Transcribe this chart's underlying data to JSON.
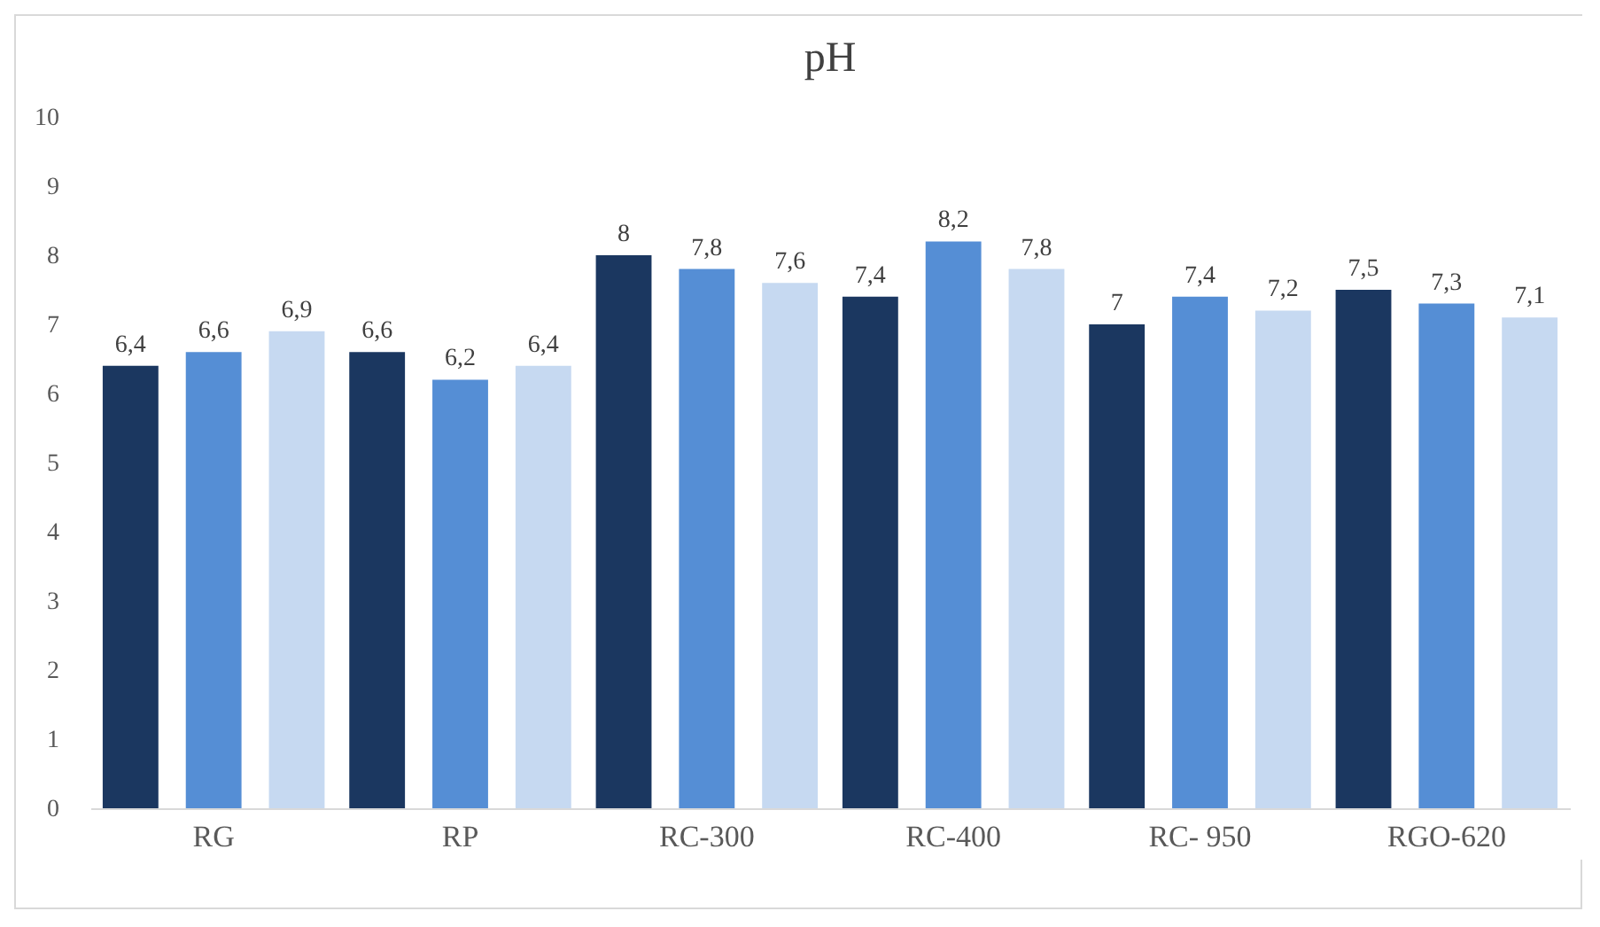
{
  "chart_data": {
    "type": "bar",
    "title": "pH",
    "categories": [
      "RG",
      "RP",
      "RC-300",
      "RC-400",
      "RC- 950",
      "RGO-620"
    ],
    "series": [
      {
        "color": "#1b3760",
        "values": [
          6.4,
          6.6,
          8,
          7.4,
          7,
          7.5
        ],
        "value_labels": [
          "6,4",
          "6,6",
          "8",
          "7,4",
          "7",
          "7,5"
        ]
      },
      {
        "color": "#558ed5",
        "values": [
          6.6,
          6.2,
          7.8,
          8.2,
          7.4,
          7.3
        ],
        "value_labels": [
          "6,6",
          "6,2",
          "7,8",
          "8,2",
          "7,4",
          "7,3"
        ]
      },
      {
        "color": "#c6d9f1",
        "values": [
          6.9,
          6.4,
          7.6,
          7.8,
          7.2,
          7.1
        ],
        "value_labels": [
          "6,9",
          "6,4",
          "7,6",
          "7,8",
          "7,2",
          "7,1"
        ]
      }
    ],
    "ylim": [
      0,
      10
    ],
    "yticks": [
      0,
      1,
      2,
      3,
      4,
      5,
      6,
      7,
      8,
      9,
      10
    ],
    "grid": false,
    "legend": false
  }
}
